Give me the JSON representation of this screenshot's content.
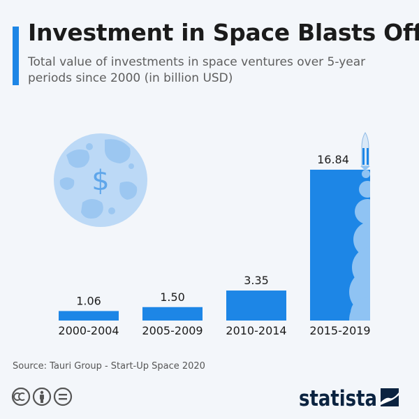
{
  "header": {
    "title": "Investment in Space Blasts Off",
    "subtitle": "Total value of investments in space ventures over 5-year periods since 2000 (in billion USD)"
  },
  "chart_data": {
    "type": "bar",
    "categories": [
      "2000-2004",
      "2005-2009",
      "2010-2014",
      "2015-2019"
    ],
    "values": [
      1.06,
      1.5,
      3.35,
      16.84
    ],
    "value_labels": [
      "1.06",
      "1.50",
      "3.35",
      "16.84"
    ],
    "ylim": [
      0,
      16.84
    ],
    "grid": false,
    "bar_color": "#1d86e6",
    "highlight_color": "#8fc3f3"
  },
  "footer": {
    "source": "Source: Tauri Group - Start-Up Space 2020",
    "license_icons": [
      "creative-commons-icon",
      "attribution-icon",
      "no-derivatives-icon"
    ],
    "brand": "statista"
  },
  "colors": {
    "accent": "#1d86e6",
    "background": "#f3f6fa",
    "brand_dark": "#0b2340"
  },
  "decorations": {
    "moon_icon": "dollar-moon-icon",
    "rocket_icon": "rocket-icon",
    "moon_symbol": "$"
  }
}
